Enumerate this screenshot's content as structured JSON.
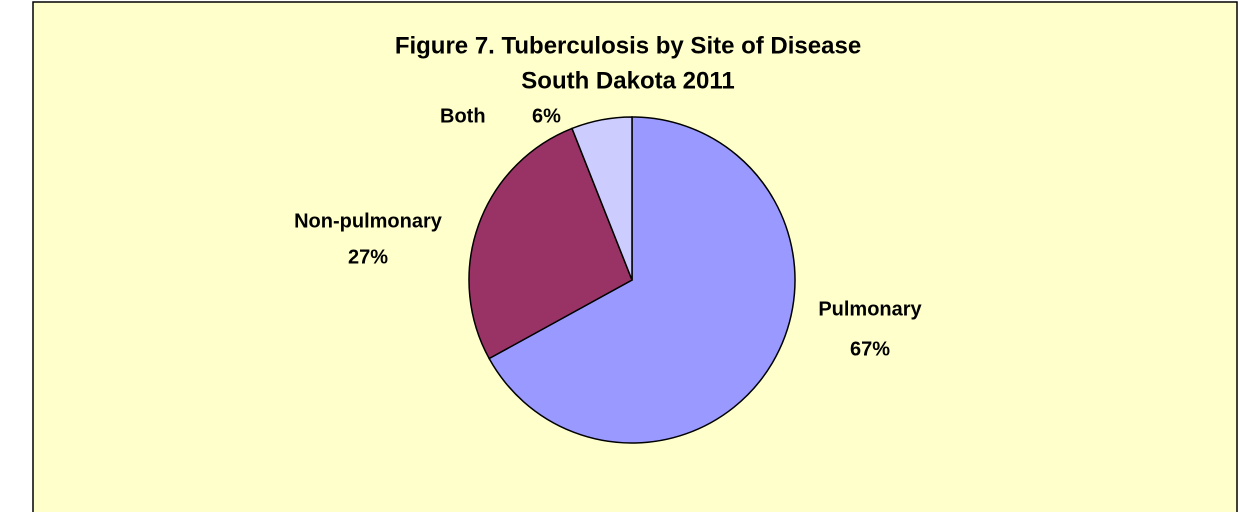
{
  "chart_data": {
    "type": "pie",
    "title": "Figure 7.  Tuberculosis by Site of Disease",
    "subtitle": "South Dakota 2011",
    "categories": [
      "Pulmonary",
      "Non-pulmonary",
      "Both"
    ],
    "values": [
      67,
      27,
      6
    ],
    "value_labels": [
      "67%",
      "27%",
      "6%"
    ],
    "colors": [
      "#9999ff",
      "#993366",
      "#ccccff"
    ],
    "background": "#ffffcc"
  }
}
